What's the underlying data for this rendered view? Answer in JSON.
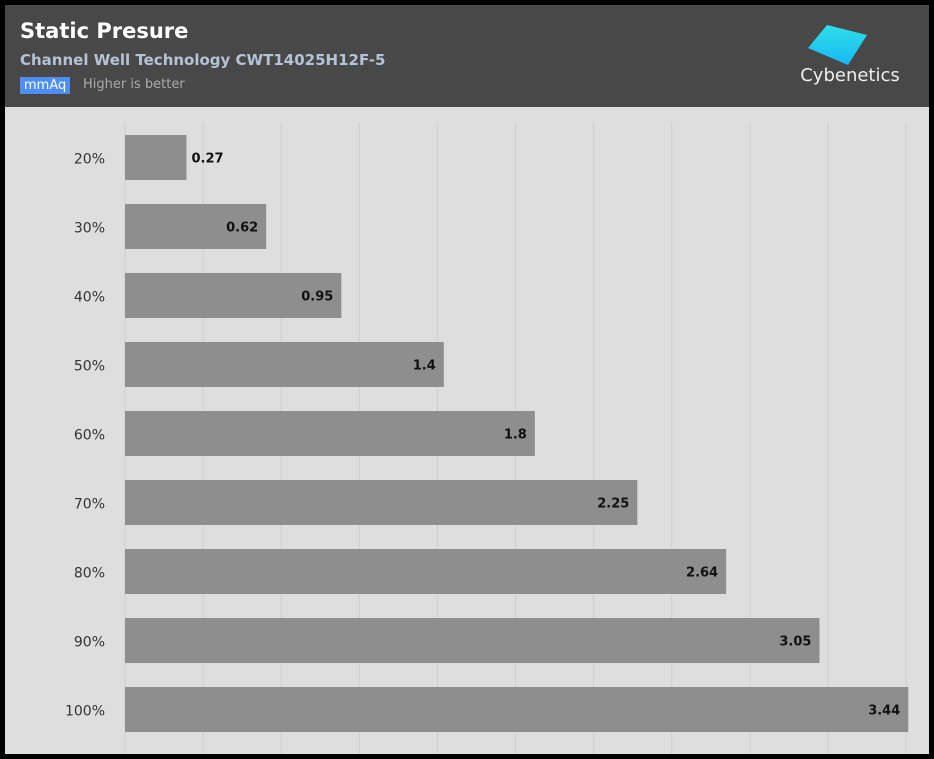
{
  "header": {
    "title": "Static Presure",
    "subtitle": "Channel Well Technology CWT14025H12F-5",
    "unit_badge": "mmAq",
    "note": "Higher is better",
    "logo_text": "Cybenetics"
  },
  "colors": {
    "bar": "#8e8e8e",
    "header_bg": "#484848",
    "plot_bg": "#dedede",
    "badge": "#4f8ef5",
    "logo": "#1ec8f0"
  },
  "chart_data": {
    "type": "bar",
    "orientation": "horizontal",
    "title": "Static Presure",
    "xlabel": "",
    "ylabel": "",
    "categories": [
      "20%",
      "30%",
      "40%",
      "50%",
      "60%",
      "70%",
      "80%",
      "90%",
      "100%"
    ],
    "values": [
      0.27,
      0.62,
      0.95,
      1.4,
      1.8,
      2.25,
      2.64,
      3.05,
      3.44
    ],
    "value_labels": [
      "0.27",
      "0.62",
      "0.95",
      "1.4",
      "1.8",
      "2.25",
      "2.64",
      "3.05",
      "3.44"
    ],
    "xlim": [
      0,
      3.43
    ],
    "grid": true,
    "gridlines": 10
  }
}
